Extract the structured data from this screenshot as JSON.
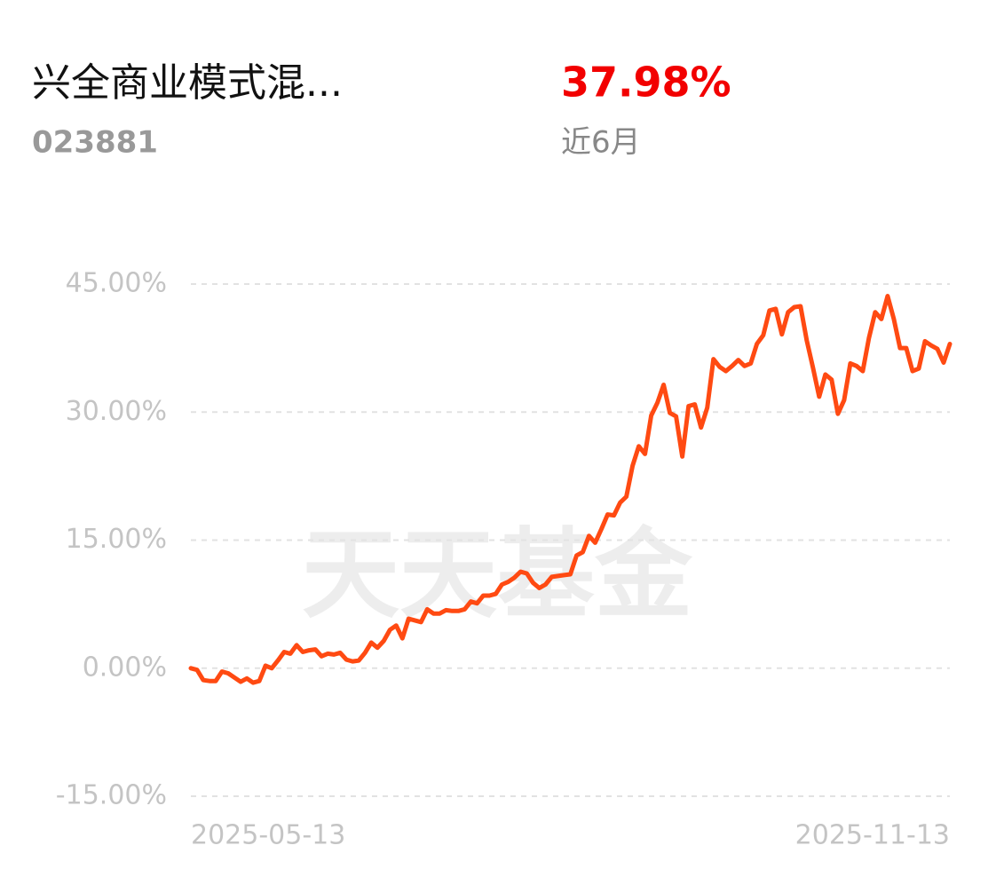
{
  "header": {
    "name": "兴全商业模式混...",
    "code": "023881",
    "return": "37.98%",
    "period": "近6月"
  },
  "watermark": "天天基金",
  "chart_data": {
    "type": "line",
    "categories": [
      "2025-05-13",
      null,
      null,
      null,
      null,
      null,
      null,
      null,
      null,
      null,
      null,
      null,
      null,
      null,
      null,
      null,
      null,
      null,
      null,
      null,
      null,
      null,
      null,
      null,
      null,
      null,
      null,
      null,
      null,
      null,
      null,
      null,
      null,
      null,
      null,
      null,
      null,
      null,
      null,
      null,
      null,
      null,
      null,
      null,
      null,
      null,
      null,
      null,
      null,
      null,
      null,
      null,
      null,
      null,
      null,
      null,
      null,
      null,
      null,
      null,
      null,
      null,
      null,
      null,
      null,
      null,
      null,
      null,
      null,
      null,
      null,
      null,
      null,
      null,
      null,
      null,
      null,
      null,
      null,
      null,
      null,
      null,
      null,
      null,
      null,
      null,
      null,
      null,
      null,
      null,
      null,
      null,
      null,
      null,
      null,
      null,
      null,
      null,
      null,
      null,
      null,
      null,
      null,
      null,
      null,
      null,
      null,
      null,
      null,
      null,
      null,
      null,
      null,
      null,
      null,
      null,
      null,
      null,
      null,
      null,
      null,
      null,
      "2025-11-13"
    ],
    "values": [
      0,
      -0.2,
      -1.4,
      -1.5,
      -1.5,
      -0.4,
      -0.6,
      -1.1,
      -1.6,
      -1.2,
      -1.7,
      -1.5,
      0.3,
      0,
      0.9,
      1.9,
      1.7,
      2.7,
      1.9,
      2.1,
      2.2,
      1.4,
      1.7,
      1.6,
      1.8,
      1.0,
      0.8,
      0.9,
      1.8,
      3.0,
      2.4,
      3.2,
      4.5,
      5.0,
      3.5,
      5.8,
      5.6,
      5.4,
      6.9,
      6.4,
      6.4,
      6.8,
      6.7,
      6.7,
      6.9,
      7.8,
      7.6,
      8.5,
      8.5,
      8.7,
      9.8,
      10.1,
      10.6,
      11.3,
      11.1,
      10.0,
      9.4,
      9.8,
      10.7,
      10.8,
      10.9,
      11.0,
      13.2,
      13.6,
      15.5,
      14.7,
      16.3,
      18.0,
      17.9,
      19.4,
      20.1,
      23.7,
      26.0,
      25.1,
      29.6,
      31.1,
      33.2,
      29.9,
      29.5,
      24.8,
      30.7,
      30.9,
      28.2,
      30.5,
      36.2,
      35.3,
      34.8,
      35.4,
      36.1,
      35.4,
      35.7,
      38.0,
      39.0,
      41.9,
      42.1,
      39.1,
      41.7,
      42.3,
      42.4,
      38.4,
      35.2,
      31.8,
      34.4,
      33.8,
      29.8,
      31.4,
      35.7,
      35.4,
      34.8,
      38.7,
      41.7,
      40.9,
      43.6,
      40.9,
      37.5,
      37.5,
      34.8,
      35.1,
      38.3,
      37.8,
      37.4,
      35.8,
      37.98
    ],
    "color": "#ff4a12",
    "ylim": [
      -15,
      45
    ],
    "yticks": [
      {
        "value": -15,
        "label": "-15.00%"
      },
      {
        "value": 0,
        "label": "0.00%"
      },
      {
        "value": 15,
        "label": "15.00%"
      },
      {
        "value": 30,
        "label": "30.00%"
      },
      {
        "value": 45,
        "label": "45.00%"
      }
    ],
    "grid": true
  }
}
